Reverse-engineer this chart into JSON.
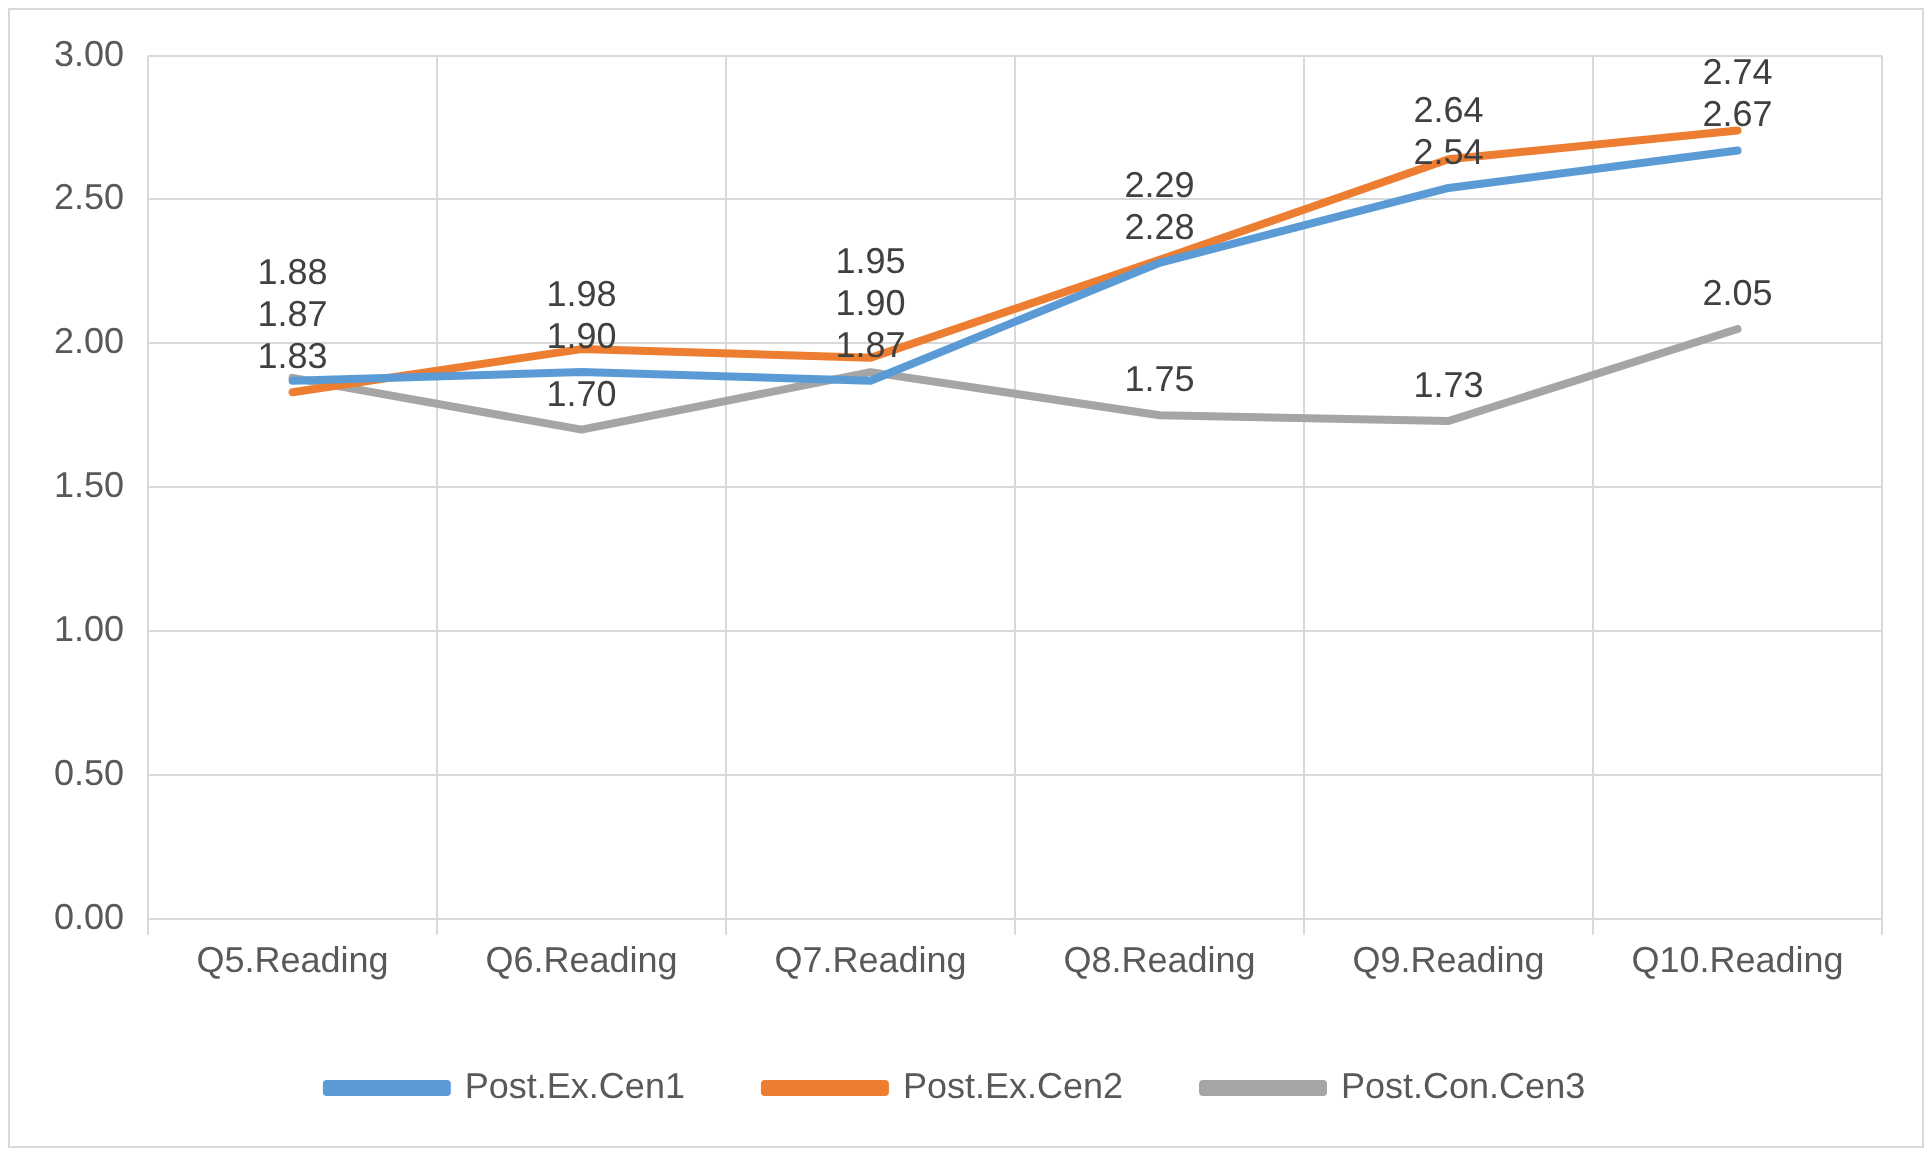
{
  "chart_data": {
    "type": "line",
    "categories": [
      "Q5.Reading",
      "Q6.Reading",
      "Q7.Reading",
      "Q8.Reading",
      "Q9.Reading",
      "Q10.Reading"
    ],
    "series": [
      {
        "name": "Post.Ex.Cen1",
        "color": "#5b9bd5",
        "values": [
          1.87,
          1.9,
          1.87,
          2.28,
          2.54,
          2.67
        ],
        "value_labels": [
          "1.87",
          "1.90",
          "1.87",
          "2.28",
          "2.54",
          "2.67"
        ]
      },
      {
        "name": "Post.Ex.Cen2",
        "color": "#ed7d31",
        "values": [
          1.83,
          1.98,
          1.95,
          2.29,
          2.64,
          2.74
        ],
        "value_labels": [
          "1.83",
          "1.98",
          "1.95",
          "2.29",
          "2.64",
          "2.74"
        ]
      },
      {
        "name": "Post.Con.Cen3",
        "color": "#a5a5a5",
        "values": [
          1.88,
          1.7,
          1.9,
          1.75,
          1.73,
          2.05
        ],
        "value_labels": [
          "1.88",
          "1.70",
          "1.90",
          "1.75",
          "1.73",
          "2.05"
        ]
      }
    ],
    "ylim": [
      0,
      3
    ],
    "yticks": [
      {
        "value": 0,
        "label": "0.00"
      },
      {
        "value": 0.5,
        "label": "0.50"
      },
      {
        "value": 1,
        "label": "1.00"
      },
      {
        "value": 1.5,
        "label": "1.50"
      },
      {
        "value": 2,
        "label": "2.00"
      },
      {
        "value": 2.5,
        "label": "2.50"
      },
      {
        "value": 3,
        "label": "3.00"
      }
    ],
    "grid": true,
    "legend": "bottom",
    "marker": "none",
    "line_style": "solid"
  }
}
